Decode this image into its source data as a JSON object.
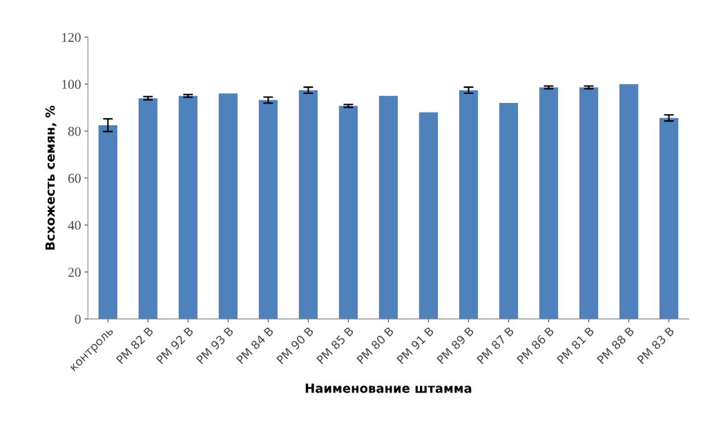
{
  "chart_data": {
    "type": "bar",
    "xlabel": "Наименование штамма",
    "ylabel": "Всхожесть семян, %",
    "categories": [
      "контроль",
      "PM 82 B",
      "PM 92 B",
      "PM 93 B",
      "PM 84 B",
      "PM 90 B",
      "PM 85 B",
      "PM 80 B",
      "PM 91 B",
      "PM 89 B",
      "PM 87 B",
      "PM 86 B",
      "PM 81 B",
      "PM 88 B",
      "PM 83 B"
    ],
    "values": [
      82.5,
      94,
      95,
      96,
      93.2,
      97.4,
      90.7,
      95,
      88,
      97.4,
      92,
      98.6,
      98.6,
      100,
      85.6
    ],
    "errors": [
      2.7,
      0.7,
      0.6,
      null,
      1.3,
      1.3,
      0.6,
      null,
      null,
      1.3,
      null,
      0.6,
      0.6,
      null,
      1.3
    ],
    "color": "#4f81bd",
    "ylim": [
      0,
      120
    ],
    "yticks": [
      0,
      20,
      40,
      60,
      80,
      100,
      120
    ],
    "grid": false
  }
}
